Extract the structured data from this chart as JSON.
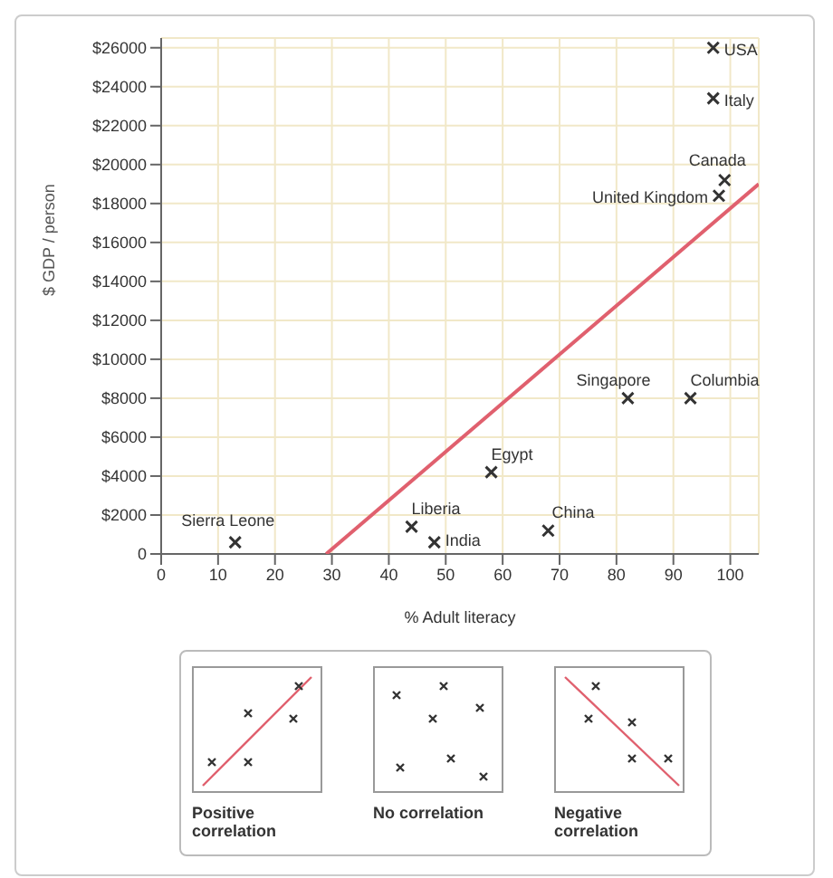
{
  "chart_data": {
    "type": "scatter",
    "xlabel": "% Adult literacy",
    "ylabel": "$ GDP / person",
    "xlim": [
      0,
      105
    ],
    "xticks": [
      0,
      10,
      20,
      30,
      40,
      50,
      60,
      70,
      80,
      90,
      100
    ],
    "ylim": [
      0,
      26500
    ],
    "yticks": [
      0,
      {
        "value": 2000,
        "label": "$2000"
      },
      {
        "value": 4000,
        "label": "$4000"
      },
      {
        "value": 6000,
        "label": "$6000"
      },
      {
        "value": 8000,
        "label": "$8000"
      },
      {
        "value": 10000,
        "label": "$10000"
      },
      {
        "value": 12000,
        "label": "$12000"
      },
      {
        "value": 14000,
        "label": "$14000"
      },
      {
        "value": 16000,
        "label": "$16000"
      },
      {
        "value": 18000,
        "label": "$18000"
      },
      {
        "value": 20000,
        "label": "$20000"
      },
      {
        "value": 22000,
        "label": "$22000"
      },
      {
        "value": 24000,
        "label": "$24000"
      },
      {
        "value": 26000,
        "label": "$26000"
      }
    ],
    "grid": true,
    "legend": false,
    "series": [
      {
        "marker": "cross",
        "color": "#333333",
        "x": [
          97,
          97,
          99,
          98,
          82,
          93,
          58,
          44,
          48,
          68,
          13
        ],
        "values": [
          26000,
          23400,
          19200,
          18400,
          8000,
          8000,
          4200,
          1400,
          600,
          1200,
          600
        ]
      },
      {
        "type": "line",
        "marker": "none",
        "color": "#e0606e",
        "x": [
          29,
          105
        ],
        "values": [
          0,
          19000
        ]
      }
    ],
    "annotations": [
      {
        "text": "USA",
        "x": 97,
        "y": 26000
      },
      {
        "text": "Italy",
        "x": 97,
        "y": 23400
      },
      {
        "text": "Canada",
        "x": 99,
        "y": 19200
      },
      {
        "text": "United Kingdom",
        "x": 98,
        "y": 18400
      },
      {
        "text": "Singapore",
        "x": 82,
        "y": 8000
      },
      {
        "text": "Columbia",
        "x": 93,
        "y": 8000
      },
      {
        "text": "Egypt",
        "x": 58,
        "y": 4200
      },
      {
        "text": "Liberia",
        "x": 44,
        "y": 1400
      },
      {
        "text": "India",
        "x": 48,
        "y": 600
      },
      {
        "text": "China",
        "x": 68,
        "y": 1200
      },
      {
        "text": "Sierra Leone",
        "x": 13,
        "y": 600
      },
      "Positive correlation",
      "No correlation",
      "Negative correlation"
    ]
  }
}
